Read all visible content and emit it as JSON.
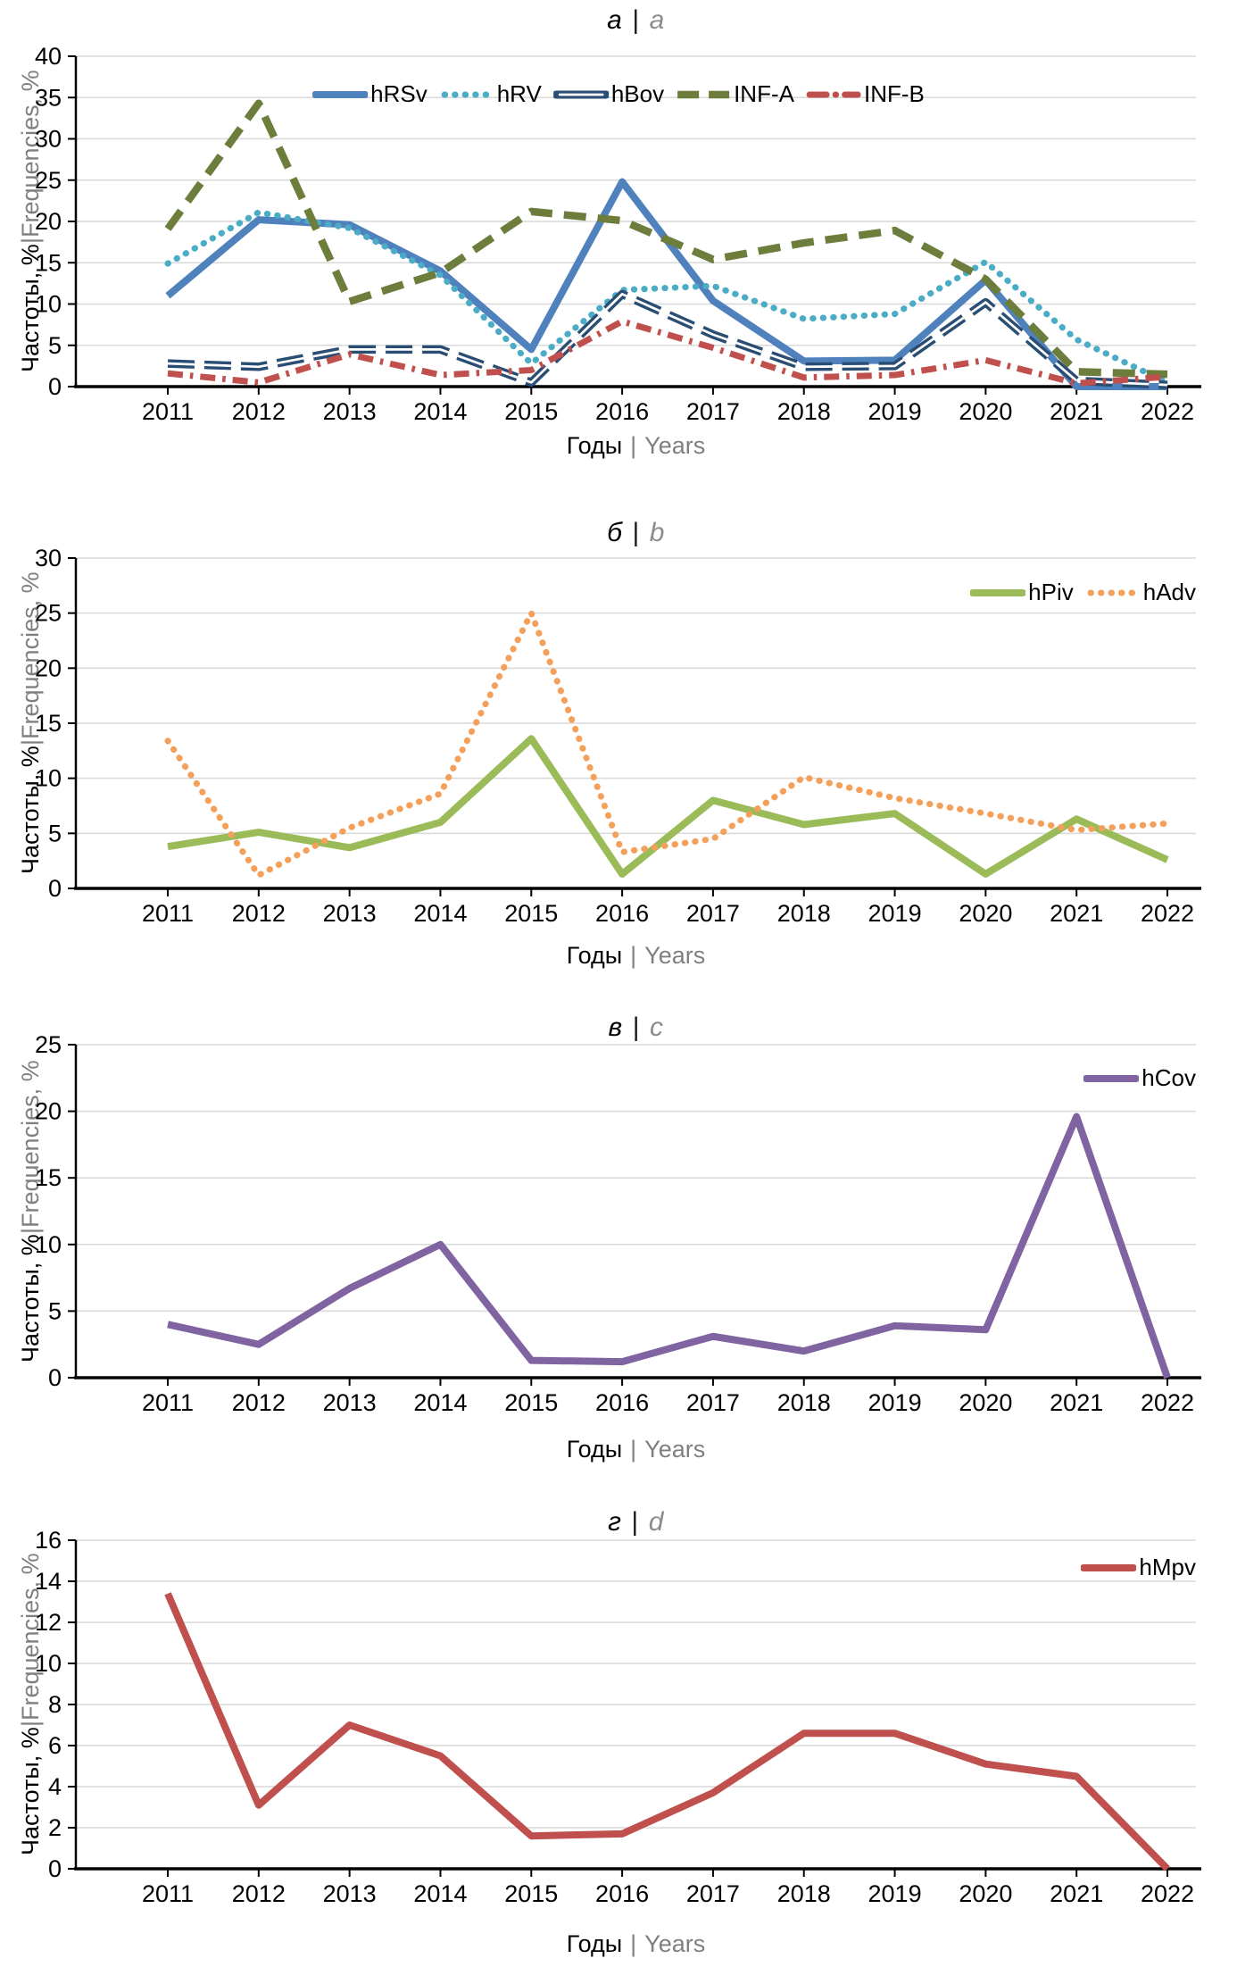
{
  "figure": {
    "description": "Four stacked line charts of yearly virus detection frequencies 2011-2022"
  },
  "palette": {
    "gridline": "#D9D9D9",
    "axis": "#000000",
    "secondary_text": "#7F7F7F",
    "title_secondary_text": "#8C8C8C"
  },
  "axis_labels": {
    "y_primary": "Частоты, %",
    "x_primary": "Годы",
    "divider": "|",
    "y_secondary": "Frequencies, %",
    "x_secondary": "Years"
  },
  "chart_data": [
    {
      "id": "a",
      "type": "line",
      "title": {
        "primary": "а",
        "divider": "|",
        "secondary": "a"
      },
      "xlabel": "Годы | Years",
      "ylabel": "Частоты, % | Frequencies, %",
      "ylim": [
        0,
        40
      ],
      "ystep": 5,
      "grid": true,
      "legend_position": "inside-top-center",
      "categories": [
        "2011",
        "2012",
        "2013",
        "2014",
        "2015",
        "2016",
        "2017",
        "2018",
        "2019",
        "2020",
        "2021",
        "2022"
      ],
      "series": [
        {
          "name": "hRSv",
          "color": "#4F81BD",
          "dash": "solid",
          "values": [
            11.0,
            20.2,
            19.6,
            14.0,
            4.5,
            24.8,
            10.4,
            3.1,
            3.2,
            12.9,
            0.0,
            0.0
          ]
        },
        {
          "name": "hRV",
          "color": "#4BACC6",
          "dash": "dot",
          "values": [
            14.9,
            21.1,
            19.2,
            13.5,
            2.8,
            11.7,
            12.2,
            8.2,
            8.8,
            15.1,
            5.7,
            0.5
          ]
        },
        {
          "name": "hBov",
          "color": "#2A4D73",
          "dash": "long-dash-outlined",
          "values": [
            2.8,
            2.4,
            4.5,
            4.5,
            0.5,
            11.2,
            6.3,
            2.4,
            2.5,
            10.2,
            0.7,
            0.2
          ]
        },
        {
          "name": "INF-A",
          "color": "#6C7D3C",
          "dash": "dash",
          "values": [
            19.1,
            34.3,
            10.3,
            13.8,
            21.2,
            20.1,
            15.4,
            17.4,
            18.9,
            13.0,
            1.8,
            1.5
          ]
        },
        {
          "name": "INF-B",
          "color": "#C0504D",
          "dash": "dash-dot",
          "values": [
            1.6,
            0.5,
            3.9,
            1.4,
            2.0,
            7.9,
            4.7,
            1.1,
            1.4,
            3.2,
            0.4,
            1.2
          ]
        }
      ]
    },
    {
      "id": "b",
      "type": "line",
      "title": {
        "primary": "б",
        "divider": "|",
        "secondary": "b"
      },
      "xlabel": "Годы | Years",
      "ylabel": "Частоты, % | Frequencies, %",
      "ylim": [
        0,
        30
      ],
      "ystep": 5,
      "grid": true,
      "legend_position": "inside-top-right",
      "categories": [
        "2011",
        "2012",
        "2013",
        "2014",
        "2015",
        "2016",
        "2017",
        "2018",
        "2019",
        "2020",
        "2021",
        "2022"
      ],
      "series": [
        {
          "name": "hPiv",
          "color": "#9BBB59",
          "dash": "solid",
          "values": [
            3.8,
            5.1,
            3.7,
            6.0,
            13.6,
            1.3,
            8.0,
            5.8,
            6.8,
            1.3,
            6.3,
            2.6
          ]
        },
        {
          "name": "hAdv",
          "color": "#F5A05A",
          "dash": "dot",
          "values": [
            13.4,
            1.2,
            5.5,
            8.6,
            25.0,
            3.3,
            4.5,
            10.1,
            8.2,
            6.8,
            5.3,
            5.9
          ]
        }
      ]
    },
    {
      "id": "c",
      "type": "line",
      "title": {
        "primary": "в",
        "divider": "|",
        "secondary": "c"
      },
      "xlabel": "Годы | Years",
      "ylabel": "Частоты, % | Frequencies, %",
      "ylim": [
        0,
        25
      ],
      "ystep": 5,
      "grid": true,
      "legend_position": "inside-top-right",
      "categories": [
        "2011",
        "2012",
        "2013",
        "2014",
        "2015",
        "2016",
        "2017",
        "2018",
        "2019",
        "2020",
        "2021",
        "2022"
      ],
      "series": [
        {
          "name": "hCov",
          "color": "#8064A2",
          "dash": "solid",
          "values": [
            4.0,
            2.5,
            6.7,
            10.0,
            1.3,
            1.2,
            3.1,
            2.0,
            3.9,
            3.6,
            19.6,
            0.0
          ]
        }
      ]
    },
    {
      "id": "d",
      "type": "line",
      "title": {
        "primary": "г",
        "divider": "|",
        "secondary": "d"
      },
      "xlabel": "Годы | Years",
      "ylabel": "Частоты, % | Frequencies, %",
      "ylim": [
        0,
        16
      ],
      "ystep": 2,
      "grid": true,
      "legend_position": "inside-top-right",
      "categories": [
        "2011",
        "2012",
        "2013",
        "2014",
        "2015",
        "2016",
        "2017",
        "2018",
        "2019",
        "2020",
        "2021",
        "2022"
      ],
      "series": [
        {
          "name": "hMpv",
          "color": "#C0504D",
          "dash": "solid",
          "values": [
            13.4,
            3.1,
            7.0,
            5.5,
            1.6,
            1.7,
            3.7,
            6.6,
            6.6,
            5.1,
            4.5,
            0.0
          ]
        }
      ]
    }
  ]
}
